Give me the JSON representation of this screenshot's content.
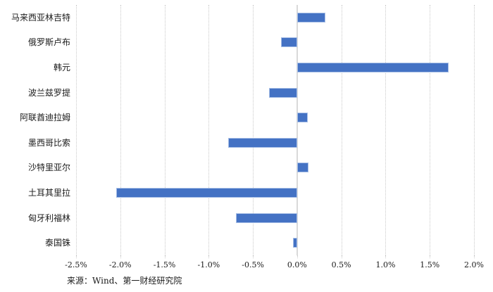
{
  "chart_data": {
    "type": "bar",
    "orientation": "horizontal",
    "title": "",
    "xlabel": "",
    "ylabel": "",
    "unit": "%",
    "categories": [
      "马来西亚林吉特",
      "俄罗斯卢布",
      "韩元",
      "波兰兹罗提",
      "阿联酋迪拉姆",
      "墨西哥比索",
      "沙特里亚尔",
      "土耳其里拉",
      "匈牙利福林",
      "泰国铢"
    ],
    "values": [
      0.32,
      -0.18,
      1.71,
      -0.32,
      0.12,
      -0.78,
      0.13,
      -2.05,
      -0.69,
      -0.05
    ],
    "xlim": [
      -2.5,
      2.0
    ],
    "x_tick_step": 0.5,
    "x_tick_labels": [
      "-2.5%",
      "-2.0%",
      "-1.5%",
      "-1.0%",
      "-0.5%",
      "0.0%",
      "0.5%",
      "1.0%",
      "1.5%",
      "2.0%"
    ],
    "grid": "vertical-dotted",
    "legend": "none",
    "bar_color": "#4472C4",
    "bar_border_color": "#a8bfe6",
    "gridline_color": "#c9c9c9",
    "zero_line_color": "#d9d9d9"
  },
  "footer": {
    "source_label": "来源：Wind、第一财经研究院"
  }
}
